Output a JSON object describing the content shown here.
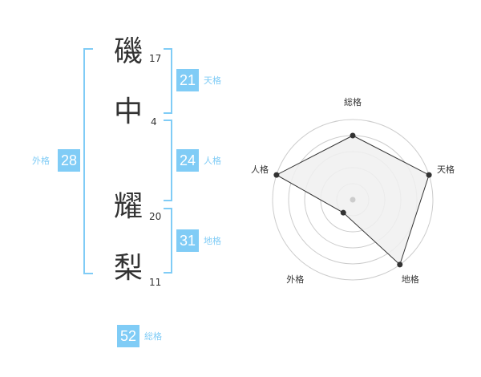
{
  "name_chars": [
    {
      "char": "磯",
      "strokes": "17"
    },
    {
      "char": "中",
      "strokes": "4"
    },
    {
      "char": "耀",
      "strokes": "20"
    },
    {
      "char": "梨",
      "strokes": "11"
    }
  ],
  "kaku": {
    "tenkaku": {
      "value": "21",
      "label": "天格"
    },
    "jinkaku": {
      "value": "24",
      "label": "人格"
    },
    "chikaku": {
      "value": "31",
      "label": "地格"
    },
    "gaikaku": {
      "value": "28",
      "label": "外格"
    },
    "soukaku": {
      "value": "52",
      "label": "総格"
    }
  },
  "colors": {
    "accent": "#80ccf6",
    "radar_fill": "#f0f0f0",
    "radar_line": "#333333"
  },
  "chart_data": {
    "type": "radar",
    "axes": [
      "総格",
      "天格",
      "地格",
      "外格",
      "人格"
    ],
    "values": [
      4,
      5,
      5,
      1,
      5
    ],
    "range": [
      0,
      5
    ],
    "rings": 5
  }
}
